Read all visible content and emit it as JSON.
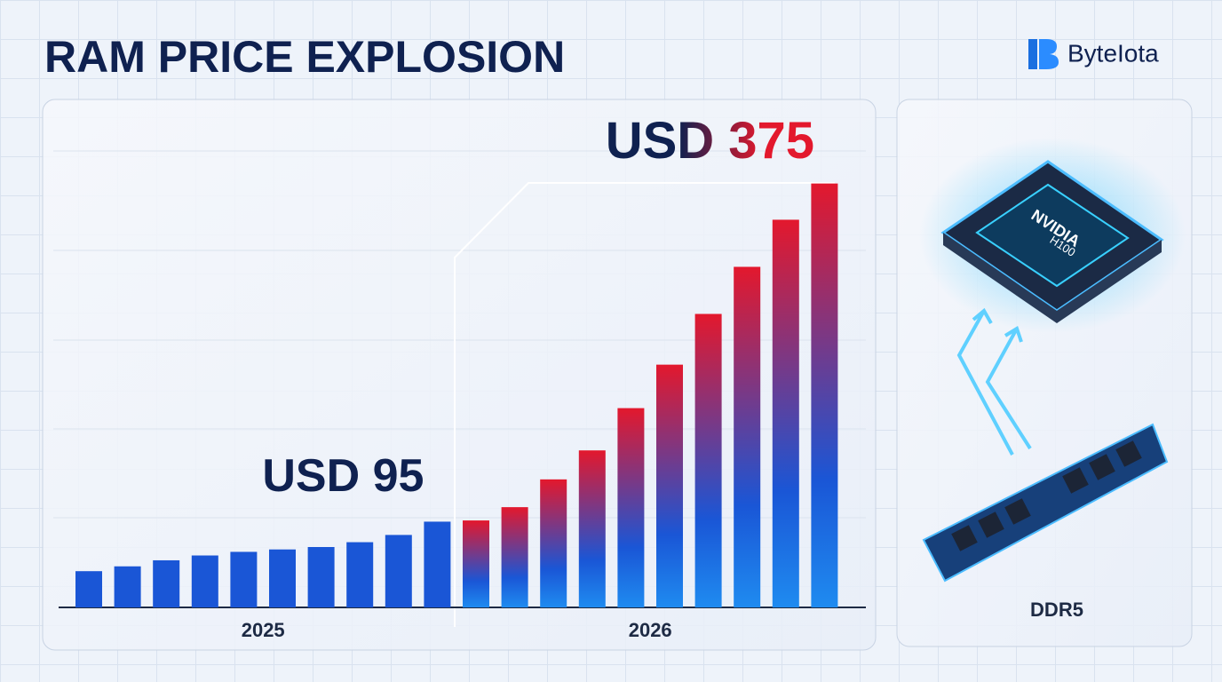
{
  "chart_data": {
    "type": "bar",
    "title": "RAM PRICE EXPLOSION",
    "brand": "ByteIota",
    "side_label": "DDR5",
    "chip_label": [
      "NVIDIA",
      "H100"
    ],
    "ylim": [
      24,
      424
    ],
    "series": [
      {
        "name": "2025",
        "color": "#1a56d6",
        "values": [
          54,
          58,
          63,
          67,
          70,
          72,
          74,
          78,
          84,
          95
        ],
        "value_labels": [
          null,
          null,
          null,
          null,
          null,
          null,
          null,
          null,
          null,
          "USD 95"
        ]
      },
      {
        "name": "2026",
        "color": "#e3182d",
        "values": [
          96,
          107,
          130,
          154,
          189,
          225,
          267,
          306,
          345,
          375
        ],
        "value_labels": [
          null,
          null,
          null,
          null,
          null,
          null,
          null,
          null,
          null,
          "USD 375"
        ]
      }
    ]
  }
}
